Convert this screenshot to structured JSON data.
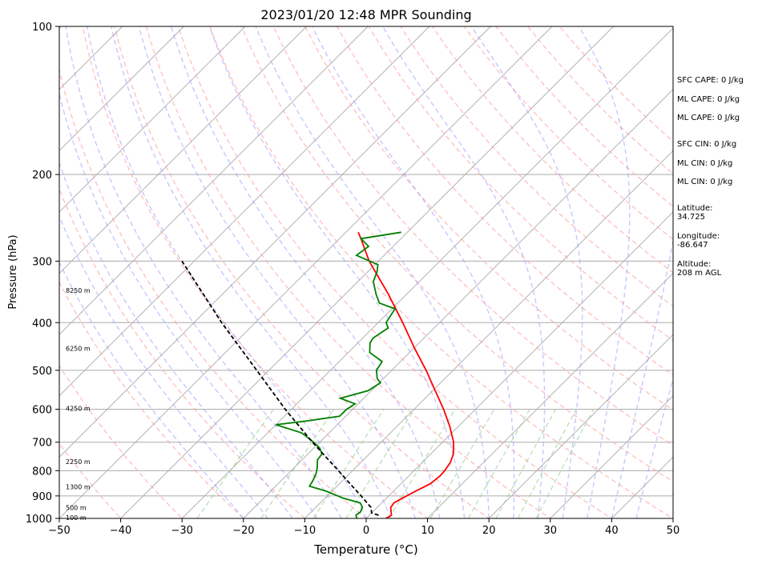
{
  "chart_data": {
    "type": "line",
    "title": "2023/01/20 12:48 MPR Sounding",
    "xlabel": "Temperature (°C)",
    "ylabel": "Pressure (hPa)",
    "xlim": [
      -50,
      50
    ],
    "ylim": [
      1000,
      100
    ],
    "y_scale": "log",
    "grid": true,
    "x_ticks": [
      "−50",
      "−40",
      "−30",
      "−20",
      "−10",
      "0",
      "10",
      "20",
      "30",
      "40",
      "50"
    ],
    "x_tick_values": [
      -50,
      -40,
      -30,
      -20,
      -10,
      0,
      10,
      20,
      30,
      40,
      50
    ],
    "y_ticks": [
      "100",
      "200",
      "300",
      "400",
      "500",
      "600",
      "700",
      "800",
      "900",
      "1000"
    ],
    "y_tick_values": [
      100,
      200,
      300,
      400,
      500,
      600,
      700,
      800,
      900,
      1000
    ],
    "series": [
      {
        "color": "#ff0000",
        "points": [
          [
            1000,
            3.2
          ],
          [
            985,
            3.6
          ],
          [
            970,
            3.0
          ],
          [
            950,
            2.2
          ],
          [
            930,
            2.0
          ],
          [
            910,
            2.6
          ],
          [
            880,
            3.6
          ],
          [
            850,
            4.8
          ],
          [
            820,
            5.1
          ],
          [
            800,
            5.0
          ],
          [
            770,
            4.6
          ],
          [
            740,
            3.7
          ],
          [
            700,
            1.8
          ],
          [
            650,
            -1.4
          ],
          [
            600,
            -5.2
          ],
          [
            550,
            -9.6
          ],
          [
            500,
            -14.4
          ],
          [
            450,
            -20.0
          ],
          [
            400,
            -26.0
          ],
          [
            350,
            -33.0
          ],
          [
            300,
            -41.5
          ],
          [
            270,
            -46.5
          ],
          [
            262,
            -48.0
          ]
        ]
      },
      {
        "color": "#008000",
        "points": [
          [
            1000,
            -1.5
          ],
          [
            985,
            -2.2
          ],
          [
            970,
            -2.0
          ],
          [
            950,
            -2.4
          ],
          [
            930,
            -3.5
          ],
          [
            910,
            -7.0
          ],
          [
            880,
            -11.0
          ],
          [
            860,
            -14.5
          ],
          [
            840,
            -14.8
          ],
          [
            810,
            -15.5
          ],
          [
            790,
            -16.2
          ],
          [
            760,
            -17.5
          ],
          [
            740,
            -17.7
          ],
          [
            720,
            -19.0
          ],
          [
            700,
            -21.0
          ],
          [
            670,
            -24.5
          ],
          [
            645,
            -30.0
          ],
          [
            635,
            -26.0
          ],
          [
            620,
            -21.0
          ],
          [
            600,
            -21.0
          ],
          [
            585,
            -20.5
          ],
          [
            570,
            -23.8
          ],
          [
            550,
            -20.5
          ],
          [
            530,
            -19.8
          ],
          [
            520,
            -21.0
          ],
          [
            500,
            -22.5
          ],
          [
            480,
            -23.0
          ],
          [
            460,
            -26.5
          ],
          [
            440,
            -28.0
          ],
          [
            430,
            -28.3
          ],
          [
            410,
            -27.5
          ],
          [
            400,
            -28.7
          ],
          [
            375,
            -29.5
          ],
          [
            365,
            -33.0
          ],
          [
            350,
            -35.0
          ],
          [
            330,
            -37.5
          ],
          [
            315,
            -38.5
          ],
          [
            305,
            -39.5
          ],
          [
            292,
            -44.5
          ],
          [
            280,
            -44.0
          ],
          [
            270,
            -46.5
          ],
          [
            262,
            -41.0
          ]
        ]
      },
      {
        "color": "#000000",
        "style": "dashed",
        "points": [
          [
            985,
            1.5
          ],
          [
            975,
            0.0
          ],
          [
            950,
            -1.0
          ],
          [
            900,
            -4.5
          ],
          [
            850,
            -8.3
          ],
          [
            800,
            -12.3
          ],
          [
            700,
            -21.2
          ],
          [
            600,
            -31.0
          ],
          [
            500,
            -42.0
          ],
          [
            400,
            -55.5
          ],
          [
            300,
            -72.0
          ]
        ]
      }
    ],
    "height_labels": [
      {
        "p": 1000,
        "text": "100 m"
      },
      {
        "p": 955,
        "text": "500 m"
      },
      {
        "p": 865,
        "text": "1300 m"
      },
      {
        "p": 770,
        "text": "2250 m"
      },
      {
        "p": 600,
        "text": "4250 m"
      },
      {
        "p": 453,
        "text": "6250 m"
      },
      {
        "p": 345,
        "text": "8250 m"
      }
    ],
    "background_lines": {
      "isotherm_color": "#aaaaaa",
      "dry_adiabat_color": "#ff9999",
      "moist_adiabat_color": "#9999ff",
      "mixing_ratio_color": "#88cc88"
    }
  },
  "side_panel": {
    "sfc_cape": "SFC CAPE: 0 J/kg",
    "ml_cape_1": "ML CAPE: 0 J/kg",
    "ml_cape_2": "ML CAPE: 0 J/kg",
    "sfc_cin": "SFC CIN: 0 J/kg",
    "ml_cin_1": "ML CIN: 0 J/kg",
    "ml_cin_2": "ML CIN: 0 J/kg",
    "latitude": "Latitude:\n34.725",
    "longitude": "Longitude:\n-86.647",
    "altitude": "Altitude:\n208 m AGL"
  }
}
